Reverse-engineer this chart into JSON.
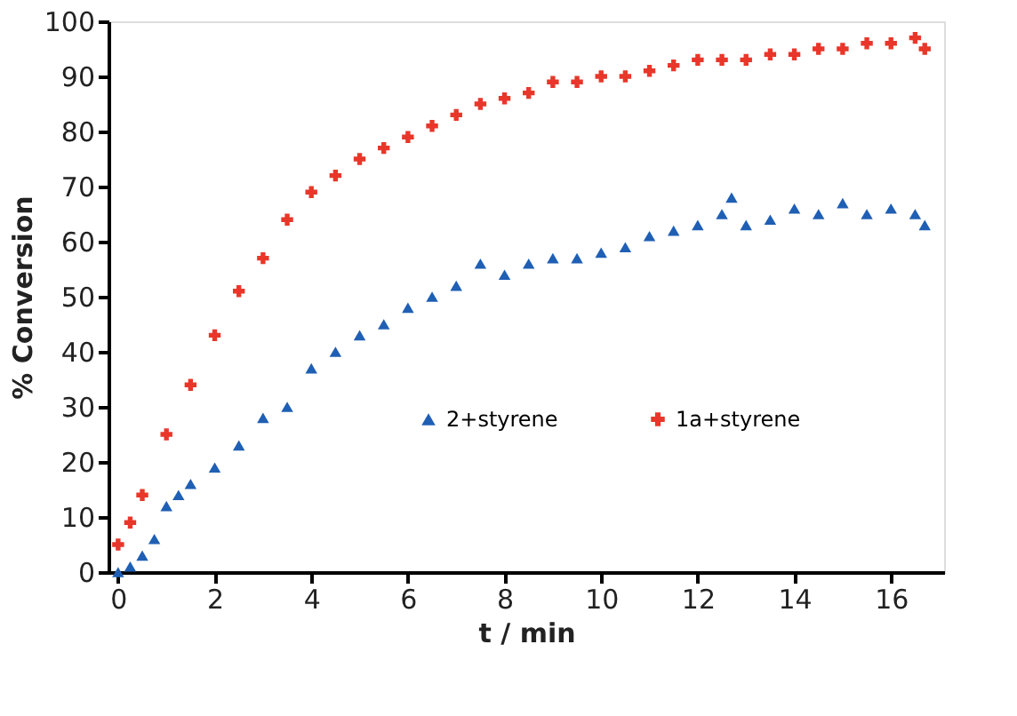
{
  "chart_data": {
    "type": "scatter",
    "xlabel": "t / min",
    "ylabel": "% Conversion",
    "xlim": [
      -0.2,
      17.1
    ],
    "xticks": [
      0,
      2,
      4,
      6,
      8,
      10,
      12,
      14,
      16
    ],
    "ylim": [
      0,
      100
    ],
    "yticks": [
      0,
      10,
      20,
      30,
      40,
      50,
      60,
      70,
      80,
      90,
      100
    ],
    "grid": false,
    "legend": "bottom right",
    "series": [
      {
        "name": "2+styrene",
        "color": "#1f5fb4",
        "marker": "triangle",
        "x": [
          0,
          0.25,
          0.5,
          0.75,
          1,
          1.25,
          1.5,
          2,
          2.5,
          3,
          3.5,
          4,
          4.5,
          5,
          5.5,
          6,
          6.5,
          7,
          7.5,
          8,
          8.5,
          9,
          9.5,
          10,
          10.5,
          11,
          11.5,
          12,
          12.5,
          12.7,
          13,
          13.5,
          14,
          14.5,
          15,
          15.5,
          16,
          16.5,
          16.7
        ],
        "values": [
          0,
          1,
          3,
          6,
          12,
          14,
          16,
          19,
          23,
          28,
          30,
          37,
          40,
          43,
          45,
          48,
          50,
          52,
          56,
          54,
          56,
          57,
          57,
          58,
          59,
          61,
          62,
          63,
          65,
          68,
          63,
          64,
          66,
          65,
          67,
          65,
          66,
          65,
          63
        ]
      },
      {
        "name": "1a+styrene",
        "color": "#e8372a",
        "marker": "cross",
        "x": [
          0,
          0.25,
          0.5,
          1,
          1.5,
          2,
          2.5,
          3,
          3.5,
          4,
          4.5,
          5,
          5.5,
          6,
          6.5,
          7,
          7.5,
          8,
          8.5,
          9,
          9.5,
          10,
          10.5,
          11,
          11.5,
          12,
          12.5,
          13,
          13.5,
          14,
          14.5,
          15,
          15.5,
          16,
          16.5,
          16.7
        ],
        "values": [
          5,
          9,
          14,
          25,
          34,
          43,
          51,
          57,
          64,
          69,
          72,
          75,
          77,
          79,
          81,
          83,
          85,
          86,
          87,
          89,
          89,
          90,
          90,
          91,
          92,
          93,
          93,
          93,
          94,
          94,
          95,
          95,
          96,
          96,
          97,
          95
        ]
      }
    ]
  }
}
